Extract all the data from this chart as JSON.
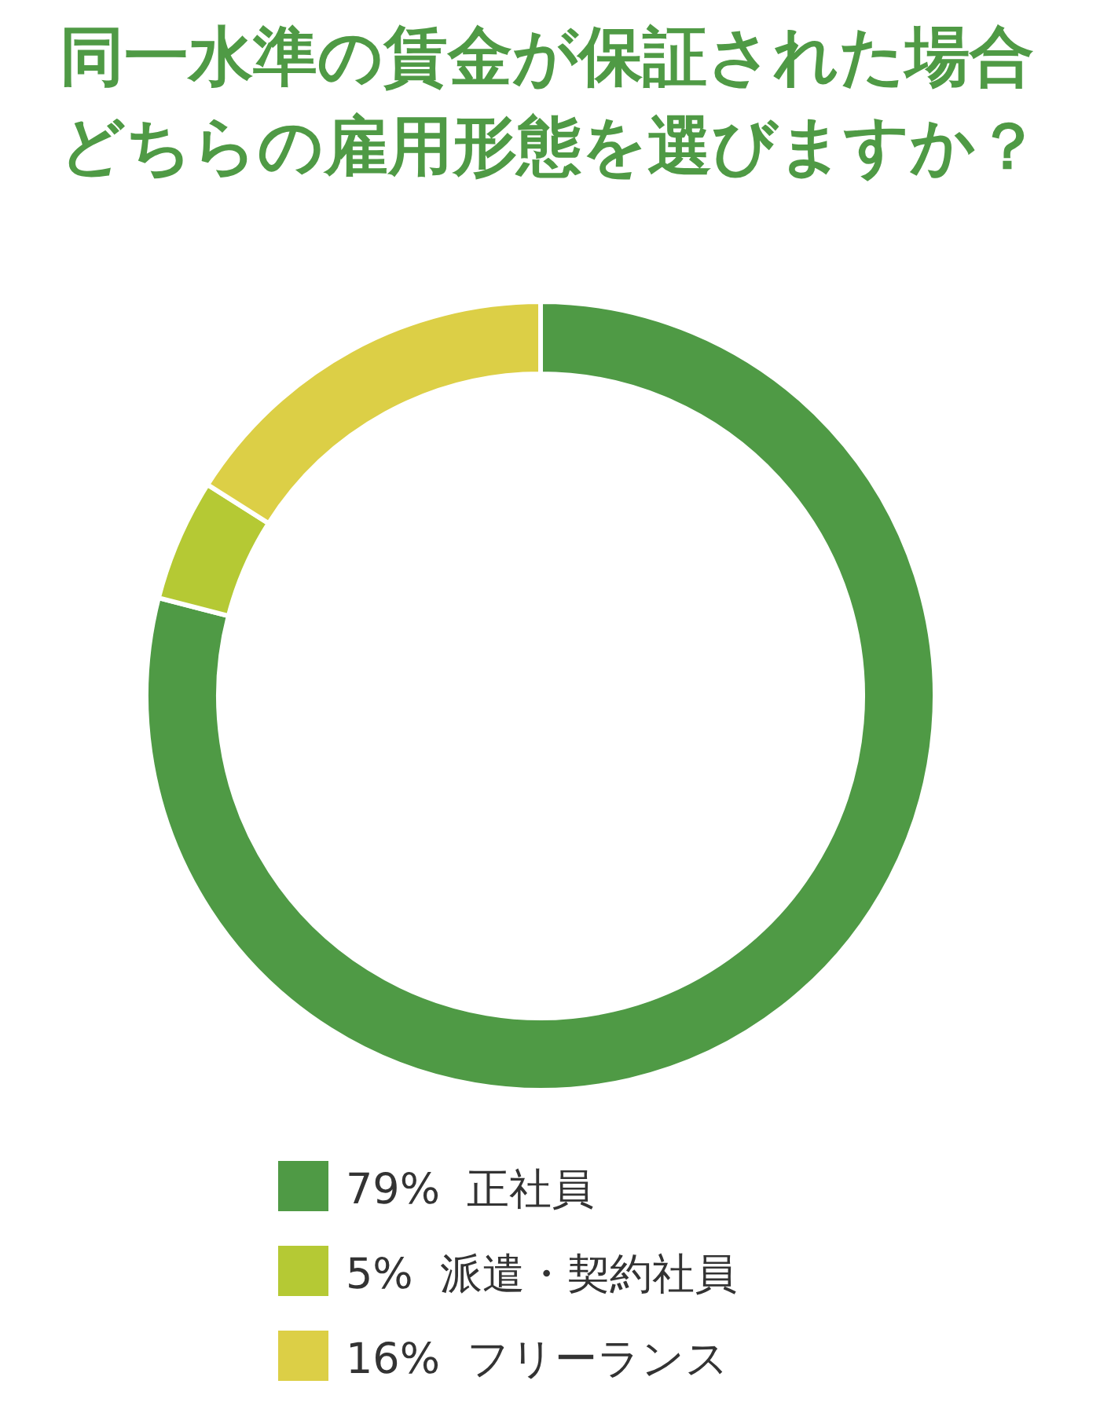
{
  "chart_data": {
    "type": "donut",
    "title": "同一水準の賃金が保証された場合どちらの雇用形態を選びますか？",
    "categories": [
      "79%  正社員",
      "5%  派遣・契約社員",
      "16%  フリーランス"
    ],
    "values": [
      79,
      5,
      16
    ],
    "colors": [
      "#4f9a45",
      "#b5c934",
      "#dccf46"
    ],
    "legend": "bottom"
  }
}
